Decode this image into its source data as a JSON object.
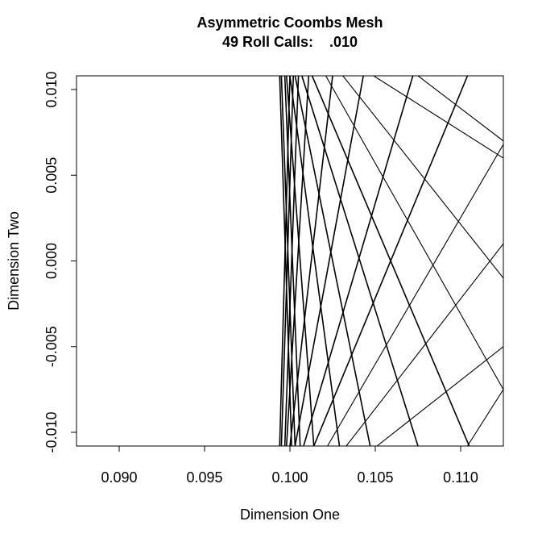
{
  "chart_data": {
    "type": "line",
    "title": "Asymmetric Coombs Mesh",
    "subtitle": "49 Roll Calls:    .010",
    "xlabel": "Dimension One",
    "ylabel": "Dimension Two",
    "xlim": [
      0.0875,
      0.1125
    ],
    "ylim": [
      -0.0108,
      0.0108
    ],
    "xticks": [
      "0.090",
      "0.095",
      "0.100",
      "0.105",
      "0.110"
    ],
    "yticks": [
      "-0.010",
      "-0.005",
      "0.000",
      "0.005",
      "0.010"
    ],
    "grid": false,
    "legend": "none",
    "line_color": "#000000",
    "series": [
      {
        "values": [
          [
            0.0994,
            0.0108
          ],
          [
            0.1001,
            -0.0108
          ]
        ]
      },
      {
        "values": [
          [
            0.0995,
            0.0108
          ],
          [
            0.1003,
            -0.0108
          ]
        ]
      },
      {
        "values": [
          [
            0.0997,
            0.0108
          ],
          [
            0.1006,
            -0.0108
          ]
        ]
      },
      {
        "values": [
          [
            0.0998,
            0.0108
          ],
          [
            0.1014,
            -0.0108
          ]
        ]
      },
      {
        "values": [
          [
            0.1,
            0.0108
          ],
          [
            0.1029,
            -0.0108
          ]
        ]
      },
      {
        "values": [
          [
            0.1003,
            0.0108
          ],
          [
            0.1047,
            -0.0108
          ]
        ]
      },
      {
        "values": [
          [
            0.1007,
            0.0108
          ],
          [
            0.1075,
            -0.0108
          ]
        ]
      },
      {
        "values": [
          [
            0.1013,
            0.0108
          ],
          [
            0.1105,
            -0.0108
          ]
        ]
      },
      {
        "values": [
          [
            0.1021,
            0.0108
          ],
          [
            0.1125,
            -0.0075
          ]
        ]
      },
      {
        "values": [
          [
            0.1031,
            0.0108
          ],
          [
            0.1125,
            -0.001
          ]
        ]
      },
      {
        "values": [
          [
            0.1049,
            0.0108
          ],
          [
            0.1125,
            0.006
          ]
        ]
      },
      {
        "values": [
          [
            0.1,
            0.0108
          ],
          [
            0.0994,
            -0.0108
          ]
        ]
      },
      {
        "values": [
          [
            0.1002,
            0.0108
          ],
          [
            0.0995,
            -0.0108
          ]
        ]
      },
      {
        "values": [
          [
            0.1005,
            0.0108
          ],
          [
            0.0997,
            -0.0108
          ]
        ]
      },
      {
        "values": [
          [
            0.1011,
            0.0108
          ],
          [
            0.0998,
            -0.0108
          ]
        ]
      },
      {
        "values": [
          [
            0.1025,
            0.0108
          ],
          [
            0.1,
            -0.0108
          ]
        ]
      },
      {
        "values": [
          [
            0.1043,
            0.0108
          ],
          [
            0.1003,
            -0.0108
          ]
        ]
      },
      {
        "values": [
          [
            0.1072,
            0.0108
          ],
          [
            0.1008,
            -0.0108
          ]
        ]
      },
      {
        "values": [
          [
            0.1104,
            0.0108
          ],
          [
            0.1014,
            -0.0108
          ]
        ]
      },
      {
        "values": [
          [
            0.1125,
            0.0068
          ],
          [
            0.1022,
            -0.0108
          ]
        ]
      },
      {
        "values": [
          [
            0.1125,
            0.001
          ],
          [
            0.1033,
            -0.0108
          ]
        ]
      },
      {
        "values": [
          [
            0.1125,
            -0.005
          ],
          [
            0.1051,
            -0.0108
          ]
        ]
      },
      {
        "values": [
          [
            0.1075,
            0.0108
          ],
          [
            0.1125,
            0.007
          ]
        ]
      },
      {
        "values": [
          [
            0.1125,
            -0.0075
          ],
          [
            0.1104,
            -0.0108
          ]
        ]
      }
    ]
  }
}
